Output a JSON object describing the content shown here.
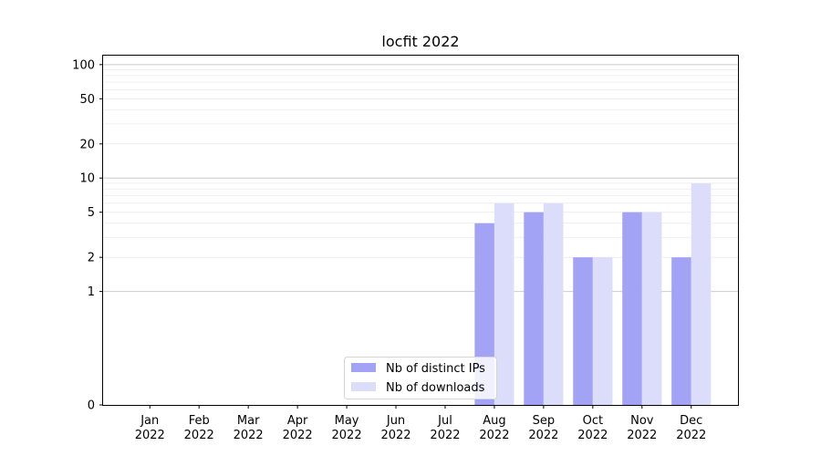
{
  "chart_data": {
    "type": "bar",
    "title": "locfit 2022",
    "xlabel": "",
    "ylabel": "",
    "categories": [
      "Jan\n2022",
      "Feb\n2022",
      "Mar\n2022",
      "Apr\n2022",
      "May\n2022",
      "Jun\n2022",
      "Jul\n2022",
      "Aug\n2022",
      "Sep\n2022",
      "Oct\n2022",
      "Nov\n2022",
      "Dec\n2022"
    ],
    "series": [
      {
        "name": "Nb of distinct IPs",
        "values": [
          0,
          0,
          0,
          0,
          0,
          0,
          0,
          4,
          5,
          2,
          5,
          2
        ],
        "color": "#a3a3f5"
      },
      {
        "name": "Nb of downloads",
        "values": [
          0,
          0,
          0,
          0,
          0,
          0,
          0,
          6,
          6,
          2,
          5,
          9
        ],
        "color": "#dcdcfb"
      }
    ],
    "yscale": "symlog",
    "ylim": [
      0,
      120
    ],
    "yticks": [
      0,
      1,
      2,
      5,
      10,
      20,
      50,
      100
    ],
    "grid": true,
    "legend_position": "lower center"
  }
}
